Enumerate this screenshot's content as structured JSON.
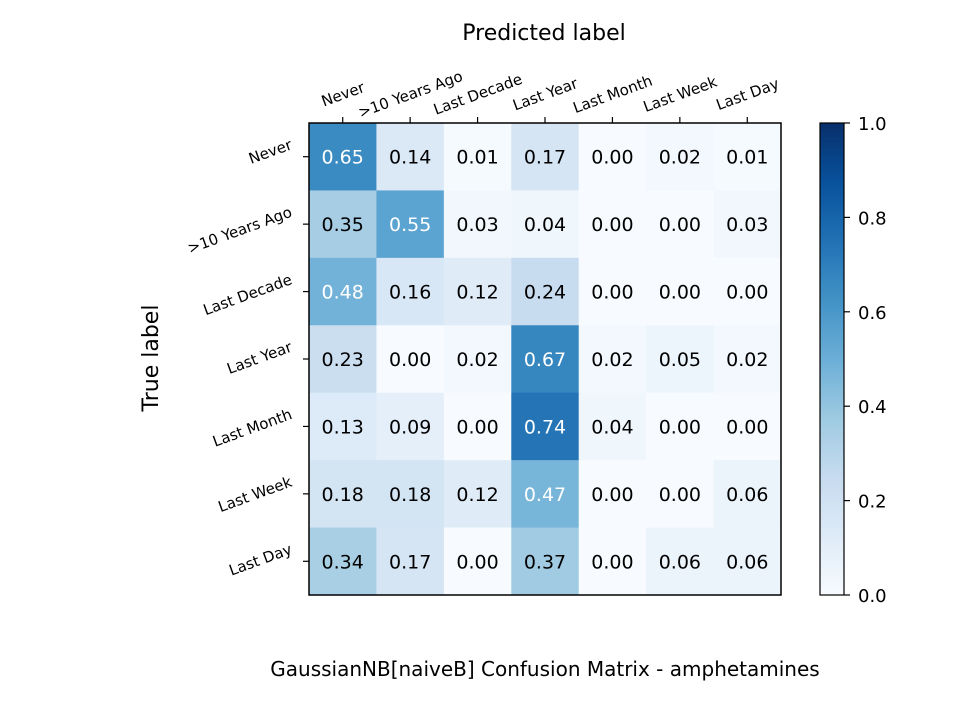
{
  "chart_data": {
    "type": "heatmap",
    "title": "Predicted label",
    "xlabel": "Predicted label",
    "ylabel": "True label",
    "caption": "GaussianNB[naiveB]  Confusion Matrix - amphetamines",
    "x_categories": [
      "Never",
      ">10 Years Ago",
      "Last Decade",
      "Last Year",
      "Last Month",
      "Last Week",
      "Last Day"
    ],
    "y_categories": [
      "Never",
      ">10 Years Ago",
      "Last Decade",
      "Last Year",
      "Last Month",
      "Last Week",
      "Last Day"
    ],
    "values": [
      [
        0.65,
        0.14,
        0.01,
        0.17,
        0.0,
        0.02,
        0.01
      ],
      [
        0.35,
        0.55,
        0.03,
        0.04,
        0.0,
        0.0,
        0.03
      ],
      [
        0.48,
        0.16,
        0.12,
        0.24,
        0.0,
        0.0,
        0.0
      ],
      [
        0.23,
        0.0,
        0.02,
        0.67,
        0.02,
        0.05,
        0.02
      ],
      [
        0.13,
        0.09,
        0.0,
        0.74,
        0.04,
        0.0,
        0.0
      ],
      [
        0.18,
        0.18,
        0.12,
        0.47,
        0.0,
        0.0,
        0.06
      ],
      [
        0.34,
        0.17,
        0.0,
        0.37,
        0.0,
        0.06,
        0.06
      ]
    ],
    "colormap": "Blues",
    "vmin": 0.0,
    "vmax": 1.0,
    "colorbar_ticks": [
      "0.0",
      "0.2",
      "0.4",
      "0.6",
      "0.8",
      "1.0"
    ],
    "colors": {
      "low": "#f7fbff",
      "high": "#08306b",
      "light_text": "#ffffff",
      "dark_text": "#000000"
    }
  }
}
